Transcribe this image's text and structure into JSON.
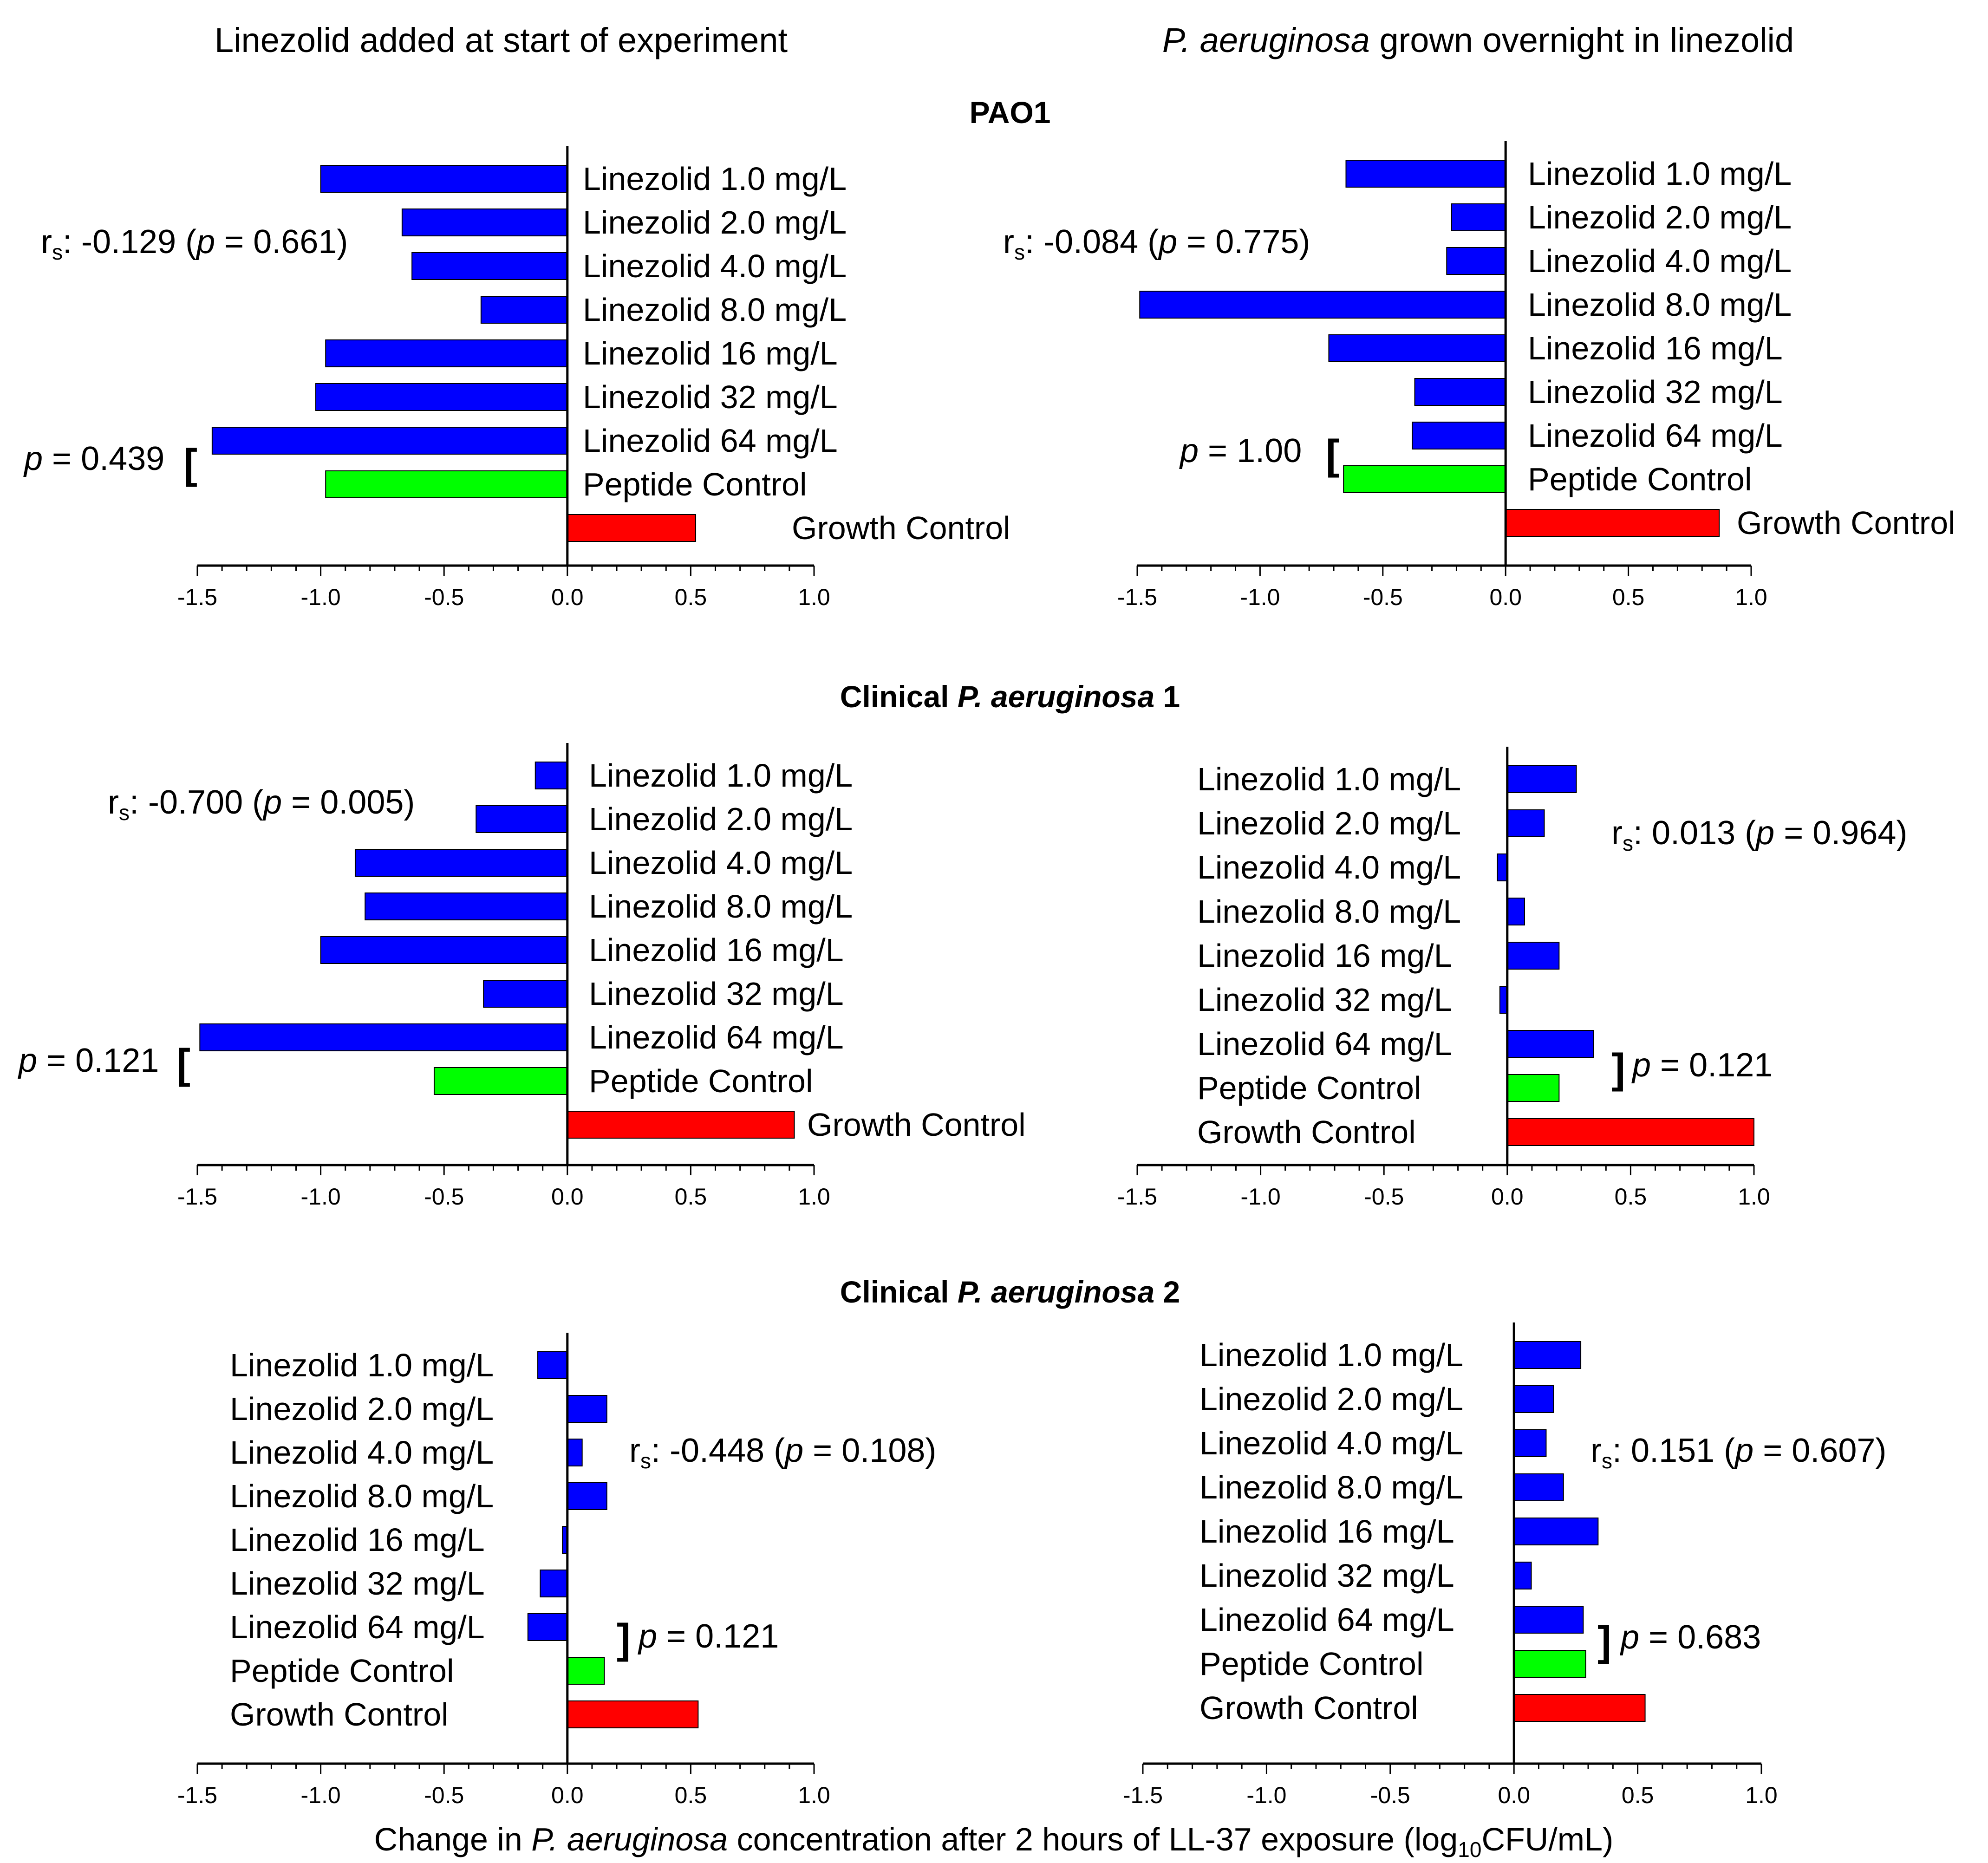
{
  "column_titles": {
    "left": "Linezolid added at start of experiment",
    "right_italic": "P. aeruginosa",
    "right_rest": " grown overnight in linezolid"
  },
  "row_titles": {
    "r0": {
      "bold": "PAO1",
      "italic": "",
      "suffix": ""
    },
    "r1": {
      "bold": "Clinical ",
      "italic": "P. aeruginosa",
      "suffix": " 1"
    },
    "r2": {
      "bold": "Clinical ",
      "italic": "P. aeruginosa",
      "suffix": " 2"
    }
  },
  "xaxis_label": {
    "prefix": "Change in ",
    "italic": "P. aeruginosa",
    "middle": " concentration after 2 hours of LL-37 exposure (log",
    "sub": "10",
    "suffix": "CFU/mL)"
  },
  "colors": {
    "linezolid": "#0000ff",
    "peptide": "#00ff00",
    "growth": "#ff0000"
  },
  "chart_data": [
    {
      "type": "bar",
      "orientation": "horizontal",
      "id": "pao1-start",
      "row": "PAO1",
      "column": "Linezolid added at start of experiment",
      "categories": [
        "Linezolid 1.0 mg/L",
        "Linezolid 2.0 mg/L",
        "Linezolid 4.0 mg/L",
        "Linezolid 8.0 mg/L",
        "Linezolid 16 mg/L",
        "Linezolid 32 mg/L",
        "Linezolid 64 mg/L",
        "Peptide Control",
        "Growth Control"
      ],
      "values": [
        -1.0,
        -0.67,
        -0.63,
        -0.35,
        -0.98,
        -1.02,
        -1.44,
        -0.98,
        0.52
      ],
      "xlim": [
        -1.5,
        1.0
      ],
      "xticks": [
        "-1.5",
        "-1.0",
        "-0.5",
        "0.0",
        "0.5",
        "1.0"
      ],
      "rs": {
        "label": "r",
        "sub": "s",
        "value": ": -0.129 (",
        "p_label": "p",
        "p_value": " = 0.661)"
      },
      "pval": {
        "p_label": "p",
        "p_value": " = 0.439",
        "bracket": "["
      }
    },
    {
      "type": "bar",
      "orientation": "horizontal",
      "id": "pao1-overnight",
      "row": "PAO1",
      "column": "P. aeruginosa grown overnight in linezolid",
      "categories": [
        "Linezolid 1.0 mg/L",
        "Linezolid 2.0 mg/L",
        "Linezolid 4.0 mg/L",
        "Linezolid 8.0 mg/L",
        "Linezolid 16 mg/L",
        "Linezolid 32 mg/L",
        "Linezolid 64 mg/L",
        "Peptide Control",
        "Growth Control"
      ],
      "values": [
        -0.65,
        -0.22,
        -0.24,
        -1.49,
        -0.72,
        -0.37,
        -0.38,
        -0.66,
        0.87
      ],
      "xlim": [
        -1.5,
        1.0
      ],
      "xticks": [
        "-1.5",
        "-1.0",
        "-0.5",
        "0.0",
        "0.5",
        "1.0"
      ],
      "rs": {
        "label": "r",
        "sub": "s",
        "value": ": -0.084 (",
        "p_label": "p",
        "p_value": " = 0.775)"
      },
      "pval": {
        "p_label": "p",
        "p_value": " = 1.00",
        "bracket": "["
      }
    },
    {
      "type": "bar",
      "orientation": "horizontal",
      "id": "clin1-start",
      "row": "Clinical P. aeruginosa 1",
      "column": "Linezolid added at start of experiment",
      "categories": [
        "Linezolid 1.0 mg/L",
        "Linezolid 2.0 mg/L",
        "Linezolid 4.0 mg/L",
        "Linezolid 8.0 mg/L",
        "Linezolid 16 mg/L",
        "Linezolid 32 mg/L",
        "Linezolid 64 mg/L",
        "Peptide Control",
        "Growth Control"
      ],
      "values": [
        -0.13,
        -0.37,
        -0.86,
        -0.82,
        -1.0,
        -0.34,
        -1.49,
        -0.54,
        0.92
      ],
      "xlim": [
        -1.5,
        1.0
      ],
      "xticks": [
        "-1.5",
        "-1.0",
        "-0.5",
        "0.0",
        "0.5",
        "1.0"
      ],
      "rs": {
        "label": "r",
        "sub": "s",
        "value": ": -0.700 (",
        "p_label": "p",
        "p_value": " = 0.005)"
      },
      "pval": {
        "p_label": "p",
        "p_value": " = 0.121",
        "bracket": "["
      }
    },
    {
      "type": "bar",
      "orientation": "horizontal",
      "id": "clin1-overnight",
      "row": "Clinical P. aeruginosa 1",
      "column": "P. aeruginosa grown overnight in linezolid",
      "categories": [
        "Linezolid 1.0 mg/L",
        "Linezolid 2.0 mg/L",
        "Linezolid 4.0 mg/L",
        "Linezolid 8.0 mg/L",
        "Linezolid 16 mg/L",
        "Linezolid 32 mg/L",
        "Linezolid 64 mg/L",
        "Peptide Control",
        "Growth Control"
      ],
      "values": [
        0.28,
        0.15,
        -0.04,
        0.07,
        0.21,
        -0.03,
        0.35,
        0.21,
        1.0
      ],
      "xlim": [
        -1.5,
        1.0
      ],
      "xticks": [
        "-1.5",
        "-1.0",
        "-0.5",
        "0.0",
        "0.5",
        "1.0"
      ],
      "rs": {
        "label": "r",
        "sub": "s",
        "value": ": 0.013 (",
        "p_label": "p",
        "p_value": " = 0.964)"
      },
      "pval": {
        "p_label": "p",
        "p_value": " = 0.121",
        "bracket": "]"
      }
    },
    {
      "type": "bar",
      "orientation": "horizontal",
      "id": "clin2-start",
      "row": "Clinical P. aeruginosa 2",
      "column": "Linezolid added at start of experiment",
      "categories": [
        "Linezolid 1.0 mg/L",
        "Linezolid 2.0 mg/L",
        "Linezolid 4.0 mg/L",
        "Linezolid 8.0 mg/L",
        "Linezolid 16 mg/L",
        "Linezolid 32 mg/L",
        "Linezolid 64 mg/L",
        "Peptide Control",
        "Growth Control"
      ],
      "values": [
        -0.12,
        0.16,
        0.06,
        0.16,
        -0.02,
        -0.11,
        -0.16,
        0.15,
        0.53
      ],
      "xlim": [
        -1.5,
        1.0
      ],
      "xticks": [
        "-1.5",
        "-1.0",
        "-0.5",
        "0.0",
        "0.5",
        "1.0"
      ],
      "rs": {
        "label": "r",
        "sub": "s",
        "value": ": -0.448 (",
        "p_label": "p",
        "p_value": " = 0.108)"
      },
      "pval": {
        "p_label": "p",
        "p_value": " = 0.121",
        "bracket": "]"
      }
    },
    {
      "type": "bar",
      "orientation": "horizontal",
      "id": "clin2-overnight",
      "row": "Clinical P. aeruginosa 2",
      "column": "P. aeruginosa grown overnight in linezolid",
      "categories": [
        "Linezolid 1.0 mg/L",
        "Linezolid 2.0 mg/L",
        "Linezolid 4.0 mg/L",
        "Linezolid 8.0 mg/L",
        "Linezolid 16 mg/L",
        "Linezolid 32 mg/L",
        "Linezolid 64 mg/L",
        "Peptide Control",
        "Growth Control"
      ],
      "values": [
        0.27,
        0.16,
        0.13,
        0.2,
        0.34,
        0.07,
        0.28,
        0.29,
        0.53
      ],
      "xlim": [
        -1.5,
        1.0
      ],
      "xticks": [
        "-1.5",
        "-1.0",
        "-0.5",
        "0.0",
        "0.5",
        "1.0"
      ],
      "rs": {
        "label": "r",
        "sub": "s",
        "value": ": 0.151 (",
        "p_label": "p",
        "p_value": " = 0.607)"
      },
      "pval": {
        "p_label": "p",
        "p_value": " = 0.683",
        "bracket": "]"
      }
    }
  ]
}
